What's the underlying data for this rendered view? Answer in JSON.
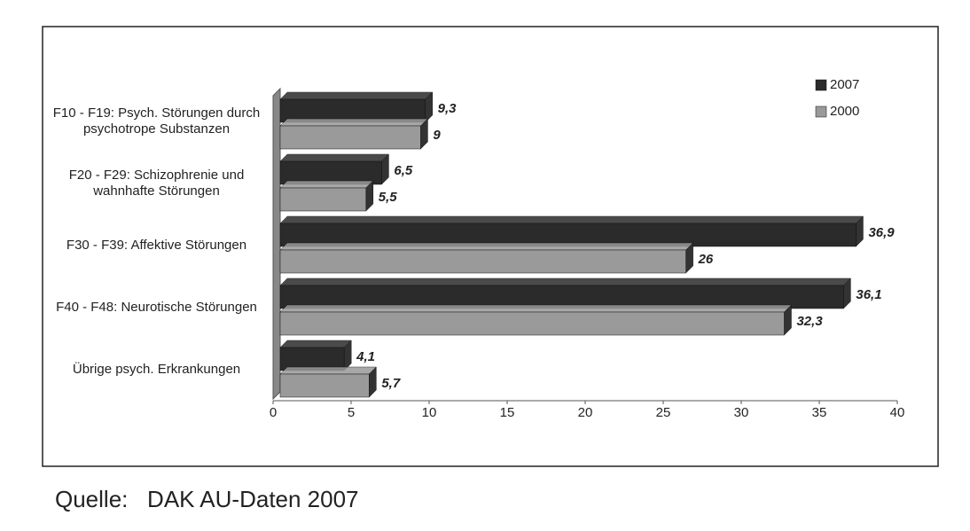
{
  "chart_data": {
    "type": "bar",
    "orientation": "horizontal",
    "categories": [
      "F10 - F19: Psych. Störungen durch psychotrope Substanzen",
      "F20 - F29: Schizophrenie und wahnhafte Störungen",
      "F30 - F39: Affektive Störungen",
      "F40 - F48: Neurotische Störungen",
      "Übrige psych. Erkrankungen"
    ],
    "series": [
      {
        "name": "2007",
        "color": "#2b2b2b",
        "values": [
          9.3,
          6.5,
          36.9,
          36.1,
          4.1
        ],
        "value_labels": [
          "9,3",
          "6,5",
          "36,9",
          "36,1",
          "4,1"
        ]
      },
      {
        "name": "2000",
        "color": "#9a9a9a",
        "values": [
          9,
          5.5,
          26,
          32.3,
          5.7
        ],
        "value_labels": [
          "9",
          "5,5",
          "26",
          "32,3",
          "5,7"
        ]
      }
    ],
    "xlim": [
      0,
      40
    ],
    "xticks": [
      0,
      5,
      10,
      15,
      20,
      25,
      30,
      35,
      40
    ],
    "legend": "top-right",
    "source": "Quelle:   DAK AU-Daten 2007"
  }
}
